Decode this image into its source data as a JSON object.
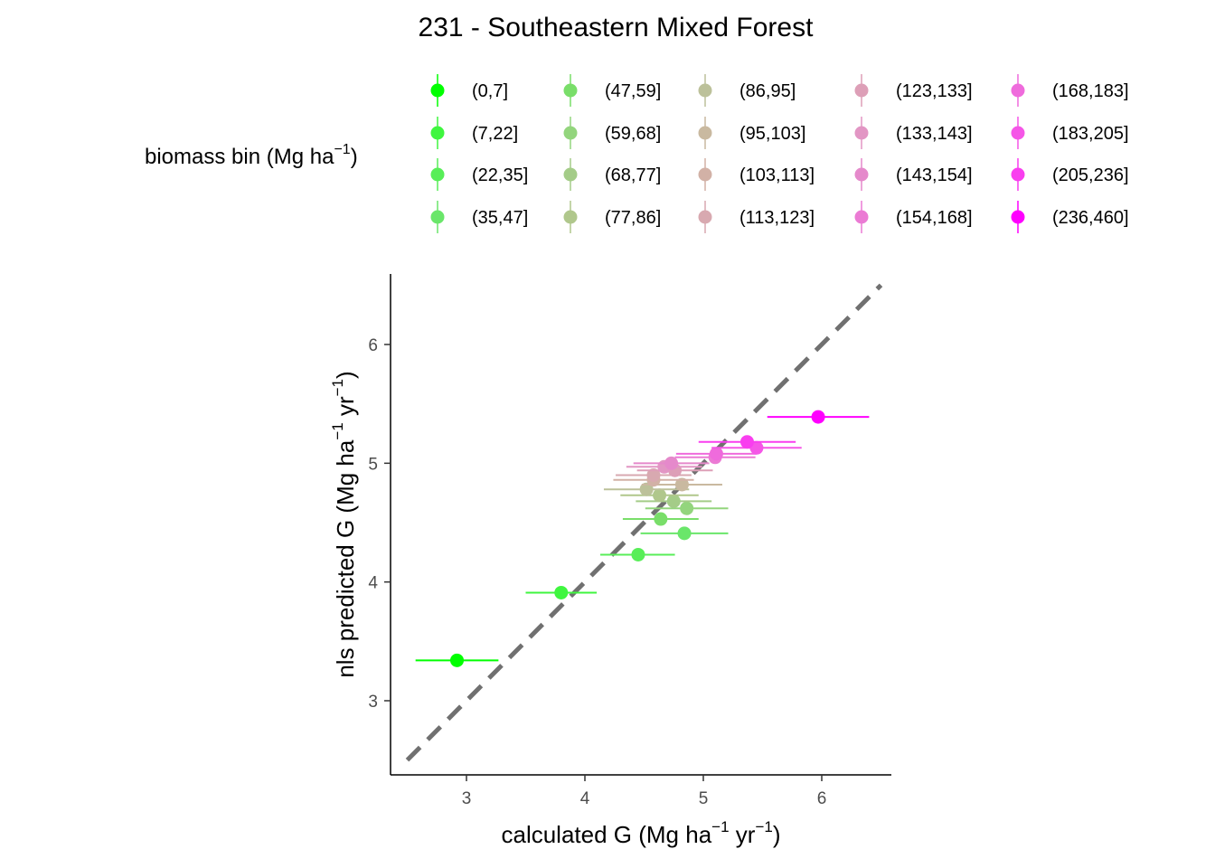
{
  "chart_data": {
    "type": "scatter",
    "title": "231 - Southeastern Mixed Forest",
    "xlabel": {
      "base": "calculated G (Mg ha",
      "sup1": "−1",
      "mid": " yr",
      "sup2": "−1",
      "end": ")"
    },
    "ylabel": {
      "base": "nls predicted G (Mg ha",
      "sup1": "−1",
      "mid": " yr",
      "sup2": "−1",
      "end": ")"
    },
    "xlim": [
      2.4,
      6.6
    ],
    "ylim": [
      2.4,
      6.6
    ],
    "x_ticks": [
      {
        "value": 3,
        "label": "3"
      },
      {
        "value": 4,
        "label": "4"
      },
      {
        "value": 5,
        "label": "5"
      },
      {
        "value": 6,
        "label": "6"
      }
    ],
    "y_ticks": [
      {
        "value": 3,
        "label": "3"
      },
      {
        "value": 4,
        "label": "4"
      },
      {
        "value": 5,
        "label": "5"
      },
      {
        "value": 6,
        "label": "6"
      }
    ],
    "reference_line": {
      "from": [
        2.5,
        2.5
      ],
      "to": [
        6.5,
        6.5
      ],
      "color": "#707070",
      "dashed": true
    },
    "grid": false,
    "legend": {
      "title": {
        "base": "biomass bin (Mg ha",
        "sup": "−1",
        "end": ")"
      },
      "placement": "top"
    },
    "series": [
      {
        "name": "(0,7]",
        "color": "#00FF00",
        "x": 2.92,
        "y": 3.34,
        "xmin": 2.57,
        "xmax": 3.27
      },
      {
        "name": "(7,22]",
        "color": "#3FF63F",
        "x": 3.8,
        "y": 3.91,
        "xmin": 3.5,
        "xmax": 4.1
      },
      {
        "name": "(22,35]",
        "color": "#58EE58",
        "x": 4.45,
        "y": 4.23,
        "xmin": 4.13,
        "xmax": 4.76
      },
      {
        "name": "(35,47]",
        "color": "#6AE66A",
        "x": 4.84,
        "y": 4.41,
        "xmin": 4.47,
        "xmax": 5.21
      },
      {
        "name": "(47,59]",
        "color": "#79DE69",
        "x": 4.64,
        "y": 4.53,
        "xmin": 4.32,
        "xmax": 4.96
      },
      {
        "name": "(59,68]",
        "color": "#93D57D",
        "x": 4.86,
        "y": 4.62,
        "xmin": 4.51,
        "xmax": 5.21
      },
      {
        "name": "(68,77]",
        "color": "#A4CC88",
        "x": 4.75,
        "y": 4.68,
        "xmin": 4.43,
        "xmax": 5.07
      },
      {
        "name": "(77,86]",
        "color": "#B0C78C",
        "x": 4.63,
        "y": 4.73,
        "xmin": 4.3,
        "xmax": 4.96
      },
      {
        "name": "(86,95]",
        "color": "#BCC19A",
        "x": 4.52,
        "y": 4.78,
        "xmin": 4.16,
        "xmax": 4.88
      },
      {
        "name": "(95,103]",
        "color": "#C9B9A0",
        "x": 4.82,
        "y": 4.82,
        "xmin": 4.48,
        "xmax": 5.16
      },
      {
        "name": "(103,113]",
        "color": "#D2B1A6",
        "x": 4.58,
        "y": 4.86,
        "xmin": 4.24,
        "xmax": 4.92
      },
      {
        "name": "(113,123]",
        "color": "#D8A9B0",
        "x": 4.58,
        "y": 4.9,
        "xmin": 4.26,
        "xmax": 4.9
      },
      {
        "name": "(123,133]",
        "color": "#DD9FB7",
        "x": 4.76,
        "y": 4.94,
        "xmin": 4.44,
        "xmax": 5.08
      },
      {
        "name": "(133,143]",
        "color": "#E296C4",
        "x": 4.67,
        "y": 4.97,
        "xmin": 4.35,
        "xmax": 4.99
      },
      {
        "name": "(143,154]",
        "color": "#E589CB",
        "x": 4.73,
        "y": 5.0,
        "xmin": 4.41,
        "xmax": 5.05
      },
      {
        "name": "(154,168]",
        "color": "#EB7BD4",
        "x": 5.1,
        "y": 5.05,
        "xmin": 4.76,
        "xmax": 5.44
      },
      {
        "name": "(168,183]",
        "color": "#EF6BDC",
        "x": 5.11,
        "y": 5.08,
        "xmin": 4.77,
        "xmax": 5.45
      },
      {
        "name": "(183,205]",
        "color": "#F556E7",
        "x": 5.45,
        "y": 5.13,
        "xmin": 5.07,
        "xmax": 5.83
      },
      {
        "name": "(205,236]",
        "color": "#F93EEF",
        "x": 5.37,
        "y": 5.18,
        "xmin": 4.96,
        "xmax": 5.78
      },
      {
        "name": "(236,460]",
        "color": "#FF00FF",
        "x": 5.97,
        "y": 5.39,
        "xmin": 5.54,
        "xmax": 6.4
      }
    ]
  }
}
